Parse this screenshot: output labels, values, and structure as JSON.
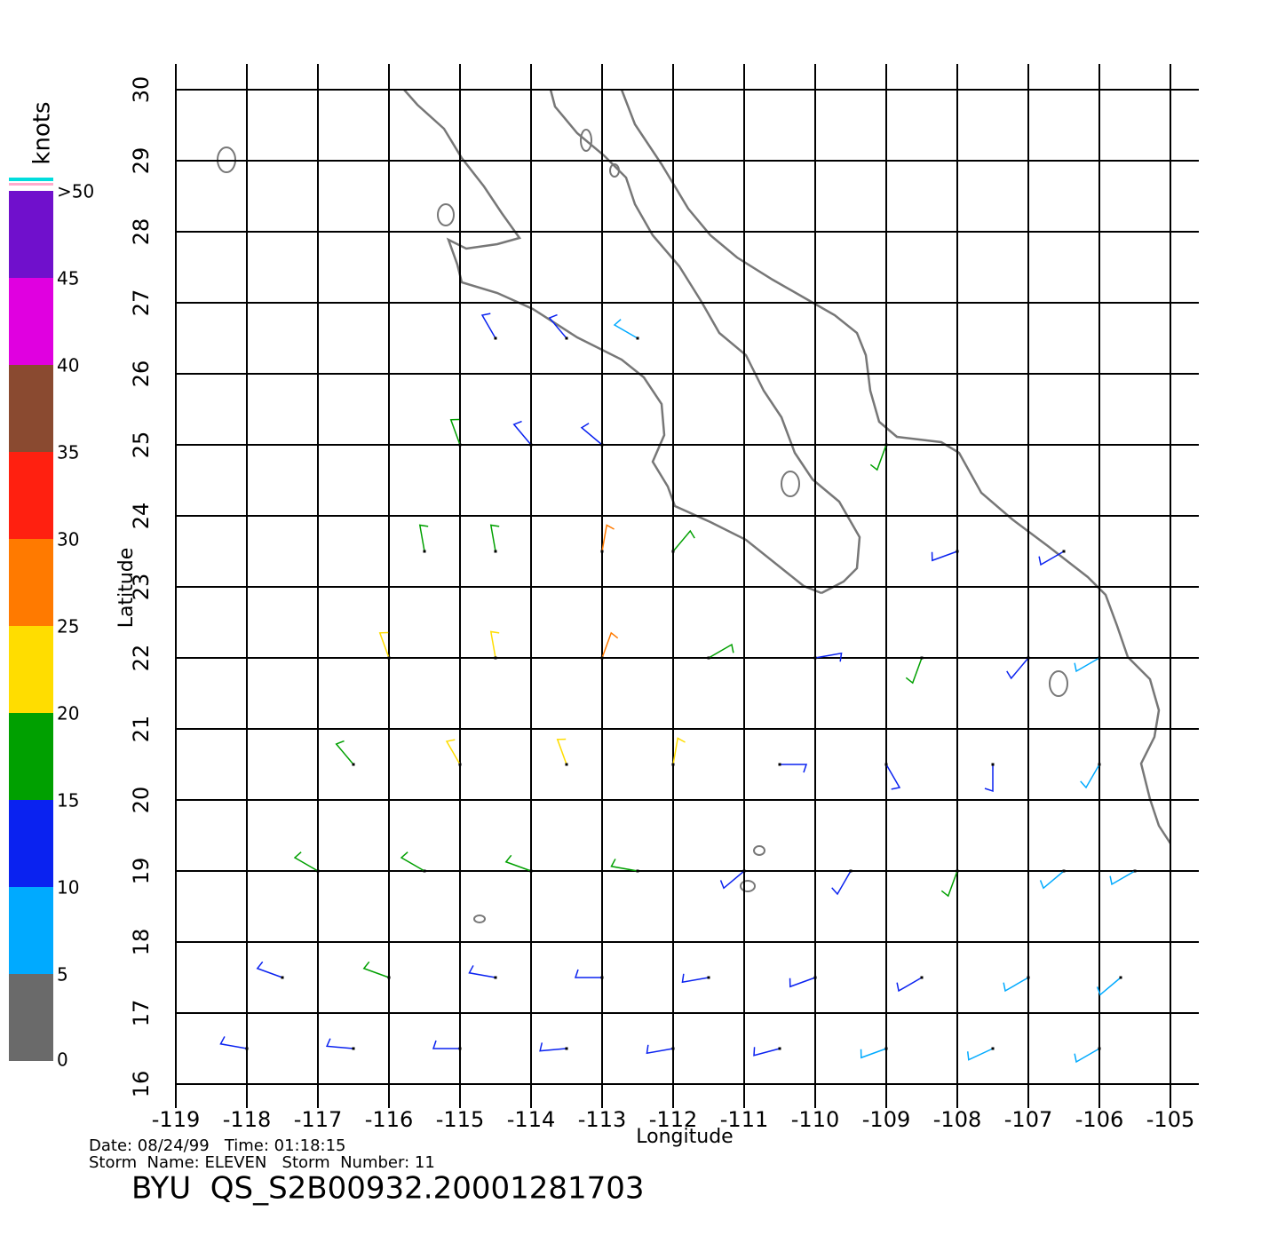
{
  "chart_data": {
    "type": "wind-barb-map",
    "xlabel": "Longitude",
    "ylabel": "Latitude",
    "xlim": [
      -119,
      -105
    ],
    "ylim": [
      16,
      30
    ],
    "xticks": [
      -119,
      -118,
      -117,
      -116,
      -115,
      -114,
      -113,
      -112,
      -111,
      -110,
      -109,
      -108,
      -107,
      -106,
      -105
    ],
    "yticks": [
      16,
      17,
      18,
      19,
      20,
      21,
      22,
      23,
      24,
      25,
      26,
      27,
      28,
      29,
      30
    ],
    "grid": true,
    "colorbar": {
      "title": "knots",
      "lim": [
        0,
        50
      ],
      "ticks": [
        0,
        5,
        10,
        15,
        20,
        25,
        30,
        35,
        40,
        45,
        {
          "value": 50,
          "label": ">50"
        }
      ],
      "colors": [
        "#6a6a6a",
        "#00aaff",
        "#0a22f0",
        "#00a000",
        "#ffdd00",
        "#ff7a00",
        "#ff2010",
        "#8a4a30",
        "#e000e0",
        "#7010cc"
      ]
    },
    "wind": {
      "lon": [
        -114.5,
        -113.5,
        -112.5,
        -115,
        -114,
        -113,
        -109,
        -115.5,
        -114.5,
        -113,
        -112,
        -108,
        -106.5,
        -116,
        -114.5,
        -113,
        -111.5,
        -110,
        -108.5,
        -107,
        -106,
        -116.5,
        -115,
        -113.5,
        -112,
        -110.5,
        -109,
        -107.5,
        -106,
        -117,
        -115.5,
        -114,
        -112.5,
        -111,
        -109.5,
        -108,
        -106.5,
        -105.5,
        -117.5,
        -116,
        -114.5,
        -113,
        -111.5,
        -110,
        -108.5,
        -107,
        -105.7,
        -118,
        -116.5,
        -115,
        -113.5,
        -112,
        -110.5,
        -109,
        -107.5,
        -106
      ],
      "lat": [
        26.5,
        26.5,
        26.5,
        25,
        25,
        25,
        25,
        23.5,
        23.5,
        23.5,
        23.5,
        23.5,
        23.5,
        22,
        22,
        22,
        22,
        22,
        22,
        22,
        22,
        20.5,
        20.5,
        20.5,
        20.5,
        20.5,
        20.5,
        20.5,
        20.5,
        19,
        19,
        19,
        19,
        19,
        19,
        19,
        19,
        19,
        17.5,
        17.5,
        17.5,
        17.5,
        17.5,
        17.5,
        17.5,
        17.5,
        17.5,
        16.5,
        16.5,
        16.5,
        16.5,
        16.5,
        16.5,
        16.5,
        16.5,
        16.5
      ],
      "speed": [
        14,
        11,
        8,
        16,
        12,
        10,
        18,
        17,
        19,
        28,
        18,
        14,
        13,
        20,
        22,
        26,
        16,
        14,
        15,
        11,
        9,
        18,
        21,
        22,
        20,
        14,
        12,
        10,
        8,
        16,
        18,
        18,
        17,
        13,
        12,
        18,
        7,
        6,
        14,
        15,
        13,
        14,
        12,
        11,
        14,
        9,
        7,
        11,
        12,
        12,
        11,
        11,
        10,
        9,
        8,
        8
      ],
      "direction": [
        330,
        320,
        300,
        340,
        320,
        310,
        200,
        350,
        350,
        10,
        40,
        250,
        240,
        340,
        350,
        20,
        60,
        80,
        200,
        220,
        240,
        320,
        330,
        340,
        10,
        90,
        150,
        180,
        210,
        300,
        300,
        290,
        280,
        230,
        210,
        200,
        230,
        240,
        290,
        290,
        280,
        270,
        260,
        250,
        240,
        240,
        230,
        280,
        275,
        270,
        265,
        260,
        255,
        250,
        245,
        240
      ]
    },
    "footer": {
      "line1": "Date: 08/24/99   Time: 01:18:15",
      "line2": "Storm  Name: ELEVEN   Storm  Number: 11",
      "id": "BYU  QS_S2B00932.20001281703"
    }
  }
}
